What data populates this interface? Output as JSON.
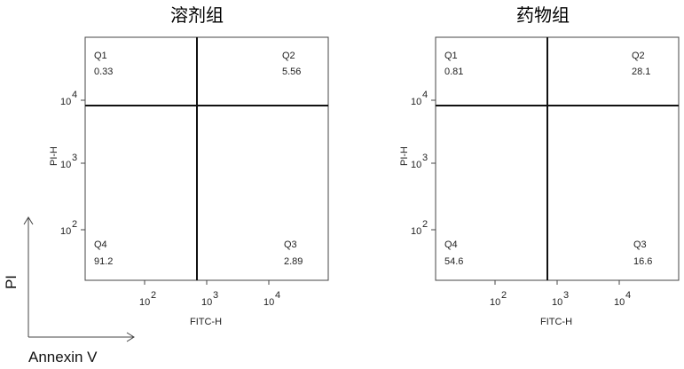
{
  "chart_data": [
    {
      "type": "scatter",
      "title": "溶剂组",
      "xlabel": "FITC-H",
      "ylabel": "PI-H",
      "xscale": "log",
      "yscale": "log",
      "xticks": [
        {
          "exp": "2",
          "label": "10",
          "value": 100
        },
        {
          "exp": "3",
          "label": "10",
          "value": 1000
        },
        {
          "exp": "4",
          "label": "10",
          "value": 10000
        }
      ],
      "yticks": [
        {
          "exp": "2",
          "label": "10",
          "value": 100
        },
        {
          "exp": "3",
          "label": "10",
          "value": 1000
        },
        {
          "exp": "4",
          "label": "10",
          "value": 10000
        }
      ],
      "quadrants": [
        {
          "name": "Q1",
          "value": "0.33"
        },
        {
          "name": "Q2",
          "value": "5.56"
        },
        {
          "name": "Q3",
          "value": "2.89"
        },
        {
          "name": "Q4",
          "value": "91.2"
        }
      ]
    },
    {
      "type": "scatter",
      "title": "药物组",
      "xlabel": "FITC-H",
      "ylabel": "PI-H",
      "xscale": "log",
      "yscale": "log",
      "xticks": [
        {
          "exp": "2",
          "label": "10",
          "value": 100
        },
        {
          "exp": "3",
          "label": "10",
          "value": 1000
        },
        {
          "exp": "4",
          "label": "10",
          "value": 10000
        }
      ],
      "yticks": [
        {
          "exp": "2",
          "label": "10",
          "value": 100
        },
        {
          "exp": "3",
          "label": "10",
          "value": 1000
        },
        {
          "exp": "4",
          "label": "10",
          "value": 10000
        }
      ],
      "quadrants": [
        {
          "name": "Q1",
          "value": "0.81"
        },
        {
          "name": "Q2",
          "value": "28.1"
        },
        {
          "name": "Q3",
          "value": "16.6"
        },
        {
          "name": "Q4",
          "value": "54.6"
        }
      ]
    }
  ],
  "side_axes": {
    "y_label": "PI",
    "x_label": "Annexin V"
  },
  "colors": {
    "dots": "#2b2bd8",
    "density_core": [
      "#f7a21c",
      "#26b14a",
      "#1aa7d6",
      "#1d3fd8"
    ],
    "gate_lines": "#111111"
  }
}
